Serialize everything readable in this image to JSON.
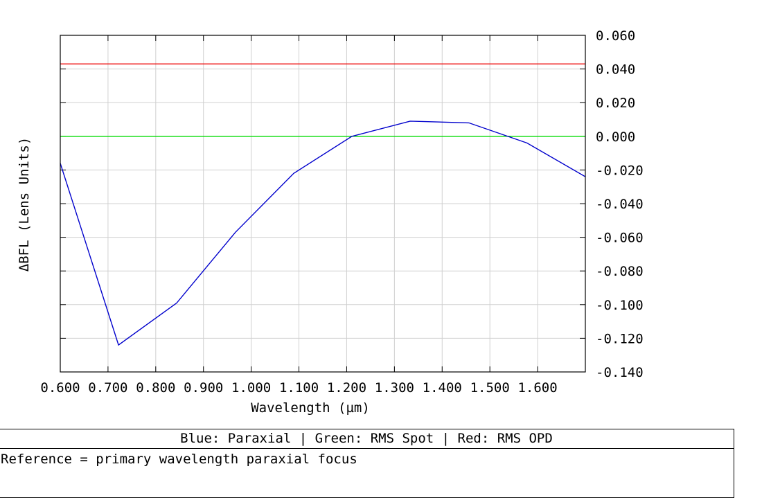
{
  "chart_data": {
    "type": "line",
    "ylabel": "ΔBFL (Lens Units)",
    "xlabel": "Wavelength (µm)",
    "xlim": [
      0.6,
      1.7
    ],
    "ylim": [
      -0.14,
      0.06
    ],
    "x_ticks": [
      0.6,
      0.7,
      0.8,
      0.9,
      1.0,
      1.1,
      1.2,
      1.3,
      1.4,
      1.5,
      1.6
    ],
    "x_tick_labels": [
      "0.600",
      "0.700",
      "0.800",
      "0.900",
      "1.000",
      "1.100",
      "1.200",
      "1.300",
      "1.400",
      "1.500",
      "1.600"
    ],
    "y_ticks": [
      0.06,
      0.04,
      0.02,
      0.0,
      -0.02,
      -0.04,
      -0.06,
      -0.08,
      -0.1,
      -0.12,
      -0.14
    ],
    "y_tick_labels": [
      "0.060",
      "0.040",
      "0.020",
      "0.000",
      "-0.020",
      "-0.040",
      "-0.060",
      "-0.080",
      "-0.100",
      "-0.120",
      "-0.140"
    ],
    "y_axis_side": "right",
    "grid": true,
    "series": [
      {
        "color": "#0000cc",
        "x": [
          0.6,
          0.722,
          0.844,
          0.967,
          1.089,
          1.211,
          1.333,
          1.456,
          1.578,
          1.7
        ],
        "y": [
          -0.016,
          -0.124,
          -0.099,
          -0.057,
          -0.022,
          0.0,
          0.009,
          0.008,
          -0.004,
          -0.024
        ]
      },
      {
        "color": "#00dd00",
        "x": [
          0.6,
          1.7
        ],
        "y": [
          0.0,
          0.0
        ]
      },
      {
        "color": "#ee0000",
        "x": [
          0.6,
          1.7
        ],
        "y": [
          0.043,
          0.043
        ]
      }
    ]
  },
  "legend": {
    "caption": "Blue: Paraxial | Green: RMS Spot | Red: RMS OPD",
    "note": "Reference = primary wavelength paraxial focus"
  }
}
